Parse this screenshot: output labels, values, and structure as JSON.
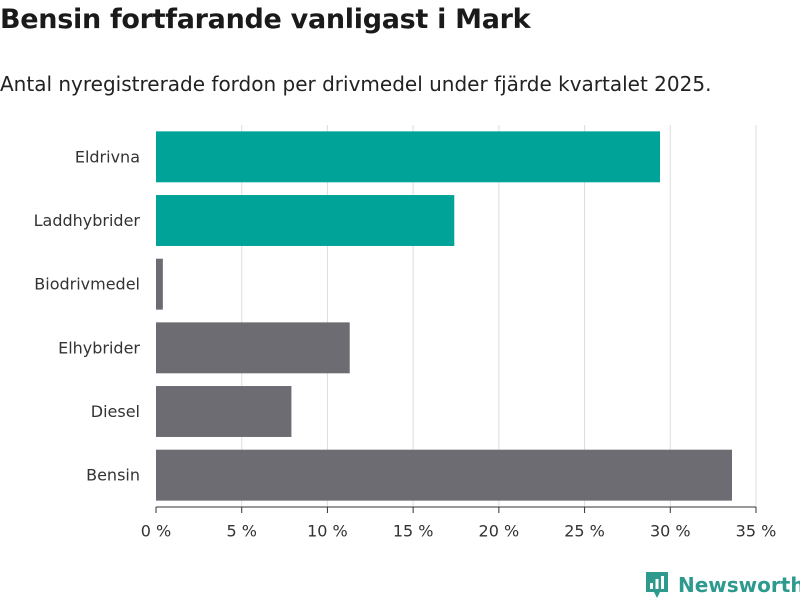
{
  "header": {
    "title": "Bensin fortfarande vanligast i Mark",
    "subtitle": "Antal nyregistrerade fordon per drivmedel under fjärde kvartalet 2025."
  },
  "chart_data": {
    "type": "bar",
    "orientation": "horizontal",
    "categories": [
      "Eldrivna",
      "Laddhybrider",
      "Biodrivmedel",
      "Elhybrider",
      "Diesel",
      "Bensin"
    ],
    "values": [
      29.4,
      17.4,
      0.4,
      11.3,
      7.9,
      33.6
    ],
    "bar_colors": [
      "#00a398",
      "#00a398",
      "#6d6c73",
      "#6d6c73",
      "#6d6c73",
      "#6d6c73"
    ],
    "xlim": [
      0,
      35
    ],
    "xticks": [
      0,
      5,
      10,
      15,
      20,
      25,
      30,
      35
    ],
    "xtick_labels": [
      "0 %",
      "5 %",
      "10 %",
      "15 %",
      "20 %",
      "25 %",
      "30 %",
      "35 %"
    ],
    "grid": "vertical",
    "xlabel": "",
    "ylabel": ""
  },
  "branding": {
    "name": "Newsworthy",
    "color": "#2e9a8e"
  }
}
